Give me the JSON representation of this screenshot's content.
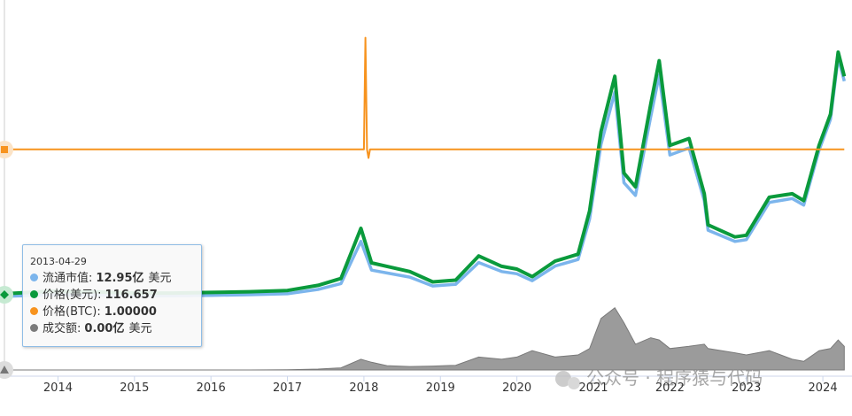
{
  "chart_data": {
    "type": "line",
    "x": [
      2013.33,
      2013.9,
      2014.0,
      2014.5,
      2015.0,
      2015.5,
      2016.0,
      2016.5,
      2017.0,
      2017.4,
      2017.7,
      2017.96,
      2018.1,
      2018.3,
      2018.6,
      2018.9,
      2019.2,
      2019.5,
      2019.8,
      2020.0,
      2020.2,
      2020.5,
      2020.8,
      2020.95,
      2021.1,
      2021.28,
      2021.4,
      2021.55,
      2021.75,
      2021.86,
      2022.0,
      2022.25,
      2022.45,
      2022.5,
      2022.85,
      2023.0,
      2023.3,
      2023.6,
      2023.75,
      2023.95,
      2024.1,
      2024.2,
      2024.28
    ],
    "xlim": [
      2013.3,
      2024.3
    ],
    "xticks": [
      2014,
      2015,
      2016,
      2017,
      2018,
      2019,
      2020,
      2021,
      2022,
      2023,
      2024
    ],
    "series": [
      {
        "name": "流通市值",
        "color": "#7cb5ec",
        "kind": "line",
        "ylim": [
          -4228,
          15540
        ],
        "values": [
          12.95,
          96,
          91.5,
          77.4,
          34,
          35.8,
          64.5,
          101,
          161,
          408,
          743,
          3173,
          1517,
          1356,
          1118,
          609,
          704,
          1958,
          1440,
          1310,
          915,
          1753,
          2128,
          4459,
          8756,
          11768,
          6552,
          5819,
          10362,
          12744,
          8149,
          8550,
          5525,
          3816,
          3168,
          3273,
          5418,
          5641,
          5265,
          8415,
          10202,
          13755,
          12398
        ]
      },
      {
        "name": "价格(美元)",
        "color": "#0a9a3c",
        "kind": "line",
        "ylim": [
          -22000,
          77400
        ],
        "values": [
          116.657,
          800,
          750,
          600,
          250,
          250,
          430,
          650,
          1000,
          2500,
          4500,
          19000,
          9000,
          8000,
          6500,
          3500,
          4000,
          11000,
          8000,
          7200,
          5000,
          9500,
          11500,
          24000,
          47000,
          63000,
          35000,
          31000,
          55000,
          67500,
          43000,
          45000,
          29000,
          20000,
          16500,
          17000,
          28000,
          29000,
          27000,
          43000,
          52000,
          70000,
          63000
        ]
      },
      {
        "name": "价格(BTC)",
        "color": "#f7931e",
        "kind": "line",
        "ylim": [
          -0.78,
          1.99
        ],
        "x": [
          2013.33,
          2018.0,
          2018.02,
          2018.04,
          2018.06,
          2018.08,
          2024.28
        ],
        "values": [
          1,
          1,
          1.9,
          1,
          0.93,
          1,
          1
        ]
      },
      {
        "name": "成交额",
        "color": "#7a7a7a",
        "kind": "area",
        "ylim": [
          0,
          8000
        ],
        "values": [
          0,
          0,
          0,
          0,
          0,
          0,
          0,
          0,
          5,
          20,
          50,
          250,
          180,
          100,
          80,
          90,
          110,
          300,
          250,
          300,
          450,
          300,
          350,
          500,
          1200,
          1450,
          1100,
          600,
          750,
          700,
          500,
          550,
          600,
          500,
          400,
          350,
          450,
          250,
          200,
          450,
          500,
          700,
          550
        ]
      }
    ],
    "tooltip": {
      "date": "2013-04-29",
      "separator": ":",
      "unit": "美元",
      "values": [
        "12.95亿",
        "116.657",
        "1.00000",
        "0.00亿"
      ]
    },
    "watermark": "公众号 · 程序猿与代码"
  }
}
